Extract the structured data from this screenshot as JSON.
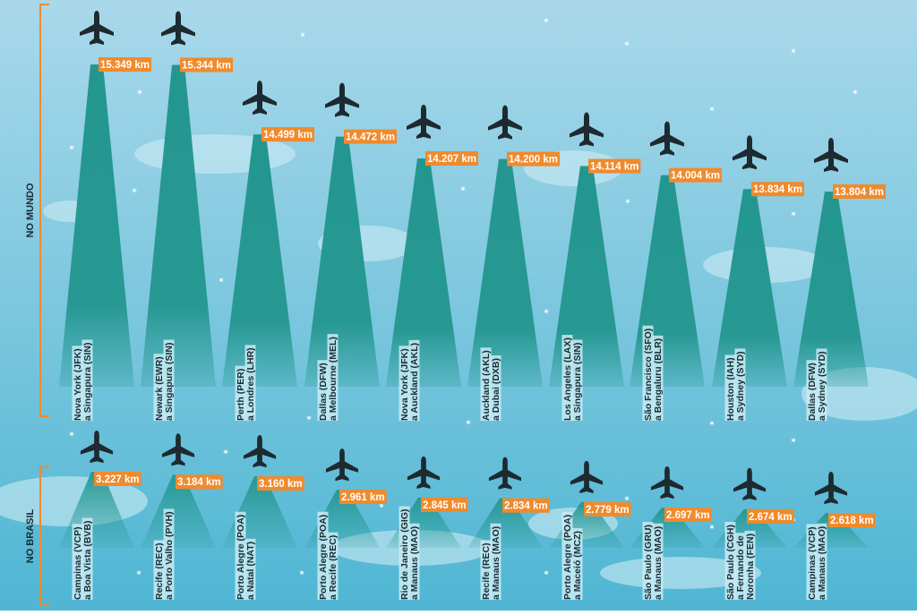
{
  "colors": {
    "sky_top": "#a9d8ea",
    "sky_bottom": "#4fb6d3",
    "beam": "#23968f",
    "plane": "#1d2a30",
    "label_bg": "#f08a2c",
    "label_text": "#ffffff",
    "bracket": "#f08a2c",
    "route_bg": "#c7ebf3",
    "route_text": "#1b2a33",
    "section_text": "#1b2a33",
    "cloud": "#cdebf3"
  },
  "icons": {
    "plane": "airplane-icon",
    "star": "star-icon"
  },
  "chart_data": [
    {
      "type": "bar",
      "section_label": "NO MUNDO",
      "unit": "km",
      "categories": [
        [
          "Nova York (JFK)",
          "a Singapura (SIN)"
        ],
        [
          "Newark (EWR)",
          "a Singapura (SIN)"
        ],
        [
          "Perth (PER)",
          "a Londres (LHR)"
        ],
        [
          "Dallas (DFW)",
          "a Melbourne (MEL)"
        ],
        [
          "Nova York (JFK)",
          "a Auckland (AKL)"
        ],
        [
          "Auckland (AKL)",
          "a Dubai (DXB)"
        ],
        [
          "Los Angeles (LAX)",
          "a Singapura (SIN)"
        ],
        [
          "São Francisco (SFO)",
          "a Bengaluru (BLR)"
        ],
        [
          "Houston (IAH)",
          "a Sydney (SYD)"
        ],
        [
          "Dallas (DFW)",
          "a Sydney (SYD)"
        ]
      ],
      "values": [
        15349,
        15344,
        14499,
        14472,
        14207,
        14200,
        14114,
        14004,
        13834,
        13804
      ],
      "value_labels": [
        "15.349 km",
        "15.344 km",
        "14.499 km",
        "14.472 km",
        "14.207 km",
        "14.200 km",
        "14.114 km",
        "14.004 km",
        "13.834 km",
        "13.804 km"
      ]
    },
    {
      "type": "bar",
      "section_label": "NO BRASIL",
      "unit": "km",
      "categories": [
        [
          "Campinas (VCP)",
          "a Boa Vista (BVB)"
        ],
        [
          "Recife (REC)",
          "a Porto Valho (PVH)"
        ],
        [
          "Porto Alegre (POA)",
          "a Natal (NAT)"
        ],
        [
          "Porto Alegre (POA)",
          "a Recife (REC)"
        ],
        [
          "Rio de Janeiro (GIG)",
          "a Manaus (MAO)"
        ],
        [
          "Recife (REC)",
          "a Manaus (MAO)"
        ],
        [
          "Porto Alegre (POA)",
          "a Maceió (MCZ)"
        ],
        [
          "São Paulo (GRU)",
          "a Manaus (MAO)"
        ],
        [
          "São Paulo (CGH)",
          "a Fernando de",
          "Noronha (FEN)"
        ],
        [
          "Campinas (VCP)",
          "a Manaus (MAO)"
        ]
      ],
      "values": [
        3227,
        3184,
        3160,
        2961,
        2845,
        2834,
        2779,
        2697,
        2674,
        2618
      ],
      "value_labels": [
        "3.227 km",
        "3.184 km",
        "3.160 km",
        "2.961 km",
        "2.845 km",
        "2.834 km",
        "2.779 km",
        "2.697 km",
        "2.674 km",
        "2.618 km"
      ]
    }
  ]
}
